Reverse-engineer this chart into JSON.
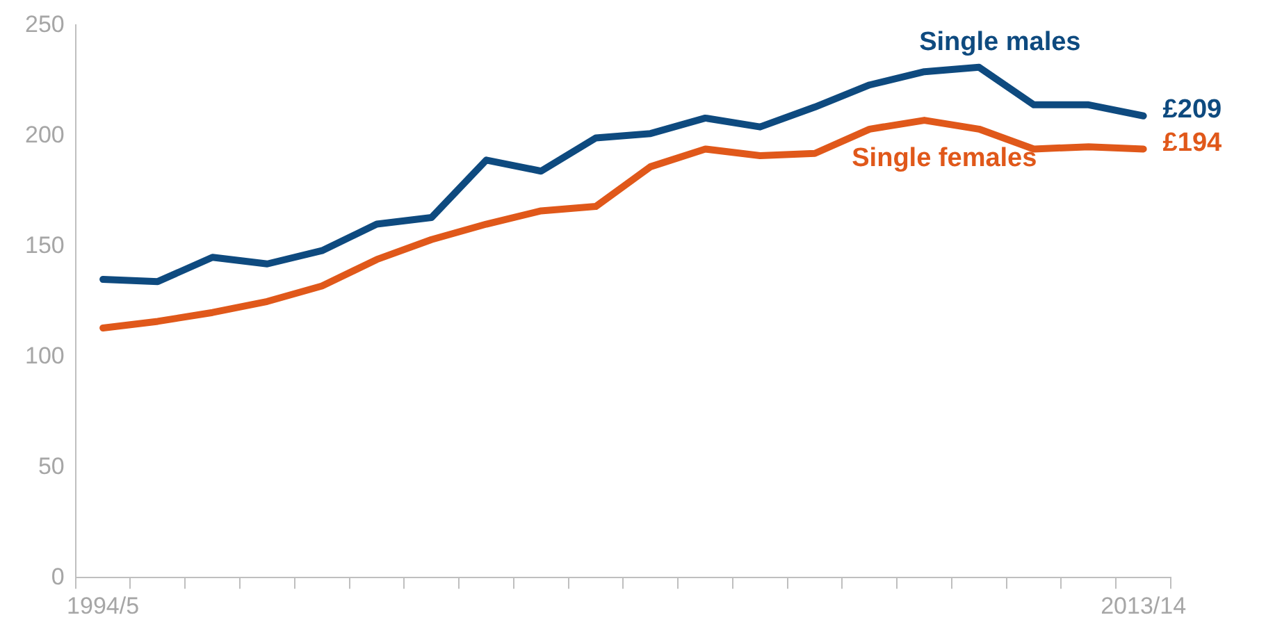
{
  "chart_data": {
    "type": "line",
    "categories": [
      "1994/5",
      null,
      null,
      null,
      null,
      null,
      null,
      null,
      null,
      null,
      null,
      null,
      null,
      null,
      null,
      null,
      null,
      null,
      null,
      "2013/14"
    ],
    "series": [
      {
        "name": "Single males",
        "color": "#0e4a7f",
        "values": [
          135,
          134,
          145,
          142,
          148,
          160,
          163,
          189,
          184,
          199,
          201,
          208,
          204,
          213,
          223,
          229,
          231,
          214,
          214,
          209
        ],
        "value_labels": [
          null,
          null,
          null,
          null,
          null,
          null,
          null,
          null,
          null,
          null,
          null,
          null,
          null,
          null,
          null,
          null,
          null,
          null,
          null,
          "£209"
        ]
      },
      {
        "name": "Single females",
        "color": "#e0581a",
        "values": [
          113,
          116,
          120,
          125,
          132,
          144,
          153,
          160,
          166,
          168,
          186,
          194,
          191,
          192,
          203,
          207,
          203,
          194,
          195,
          194
        ],
        "value_labels": [
          null,
          null,
          null,
          null,
          null,
          null,
          null,
          null,
          null,
          null,
          null,
          null,
          null,
          null,
          null,
          null,
          null,
          null,
          null,
          "£194"
        ]
      }
    ],
    "ylim": [
      0,
      250
    ],
    "yticks": [
      0,
      50,
      100,
      150,
      200,
      250
    ],
    "grid": false,
    "legend": false,
    "marker": "none",
    "line_style": "solid"
  }
}
